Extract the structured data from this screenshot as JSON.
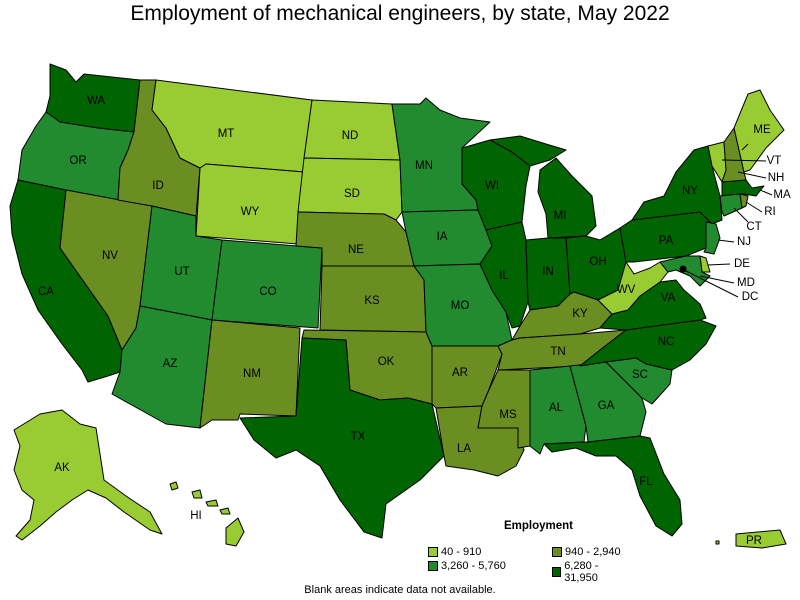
{
  "title": "Employment of mechanical engineers, by state, May 2022",
  "footnote": "Blank areas indicate data not available.",
  "colors": {
    "c1": "#99cc33",
    "c2": "#6b8e23",
    "c3": "#228b30",
    "c4": "#006400"
  },
  "legend": {
    "title": "Employment",
    "items": [
      {
        "label": "40 - 910",
        "class": "c1"
      },
      {
        "label": "940 - 2,940",
        "class": "c2"
      },
      {
        "label": "3,260 - 5,760",
        "class": "c3"
      },
      {
        "label": "6,280 - 31,950",
        "class": "c4"
      }
    ]
  },
  "states": {
    "WA": "c4",
    "OR": "c3",
    "CA": "c4",
    "NV": "c2",
    "ID": "c2",
    "MT": "c1",
    "WY": "c1",
    "UT": "c3",
    "AZ": "c3",
    "CO": "c3",
    "NM": "c2",
    "ND": "c1",
    "SD": "c1",
    "NE": "c2",
    "KS": "c2",
    "OK": "c2",
    "TX": "c4",
    "MN": "c3",
    "IA": "c3",
    "MO": "c3",
    "AR": "c2",
    "LA": "c2",
    "WI": "c4",
    "IL": "c4",
    "MI": "c4",
    "IN": "c4",
    "OH": "c4",
    "KY": "c2",
    "TN": "c2",
    "MS": "c2",
    "AL": "c3",
    "GA": "c3",
    "FL": "c4",
    "SC": "c3",
    "NC": "c4",
    "VA": "c4",
    "WV": "c1",
    "PA": "c4",
    "NY": "c4",
    "ME": "c1",
    "VT": "c1",
    "NH": "c2",
    "MA": "c4",
    "CT": "c3",
    "RI": "c2",
    "NJ": "c3",
    "DE": "c1",
    "MD": "c3",
    "DC": "c1",
    "AK": "c1",
    "HI": "c1",
    "PR": "c1"
  },
  "labels": {
    "WA": "WA",
    "OR": "OR",
    "CA": "CA",
    "NV": "NV",
    "ID": "ID",
    "MT": "MT",
    "WY": "WY",
    "UT": "UT",
    "AZ": "AZ",
    "CO": "CO",
    "NM": "NM",
    "ND": "ND",
    "SD": "SD",
    "NE": "NE",
    "KS": "KS",
    "OK": "OK",
    "TX": "TX",
    "MN": "MN",
    "IA": "IA",
    "MO": "MO",
    "AR": "AR",
    "LA": "LA",
    "WI": "WI",
    "IL": "IL",
    "MI": "MI",
    "IN": "IN",
    "OH": "OH",
    "KY": "KY",
    "TN": "TN",
    "MS": "MS",
    "AL": "AL",
    "GA": "GA",
    "FL": "FL",
    "SC": "SC",
    "NC": "NC",
    "VA": "VA",
    "WV": "WV",
    "PA": "PA",
    "NY": "NY",
    "ME": "ME",
    "VT": "VT",
    "NH": "NH",
    "MA": "MA",
    "CT": "CT",
    "RI": "RI",
    "NJ": "NJ",
    "DE": "DE",
    "MD": "MD",
    "DC": "DC",
    "AK": "AK",
    "HI": "HI",
    "PR": "PR"
  }
}
